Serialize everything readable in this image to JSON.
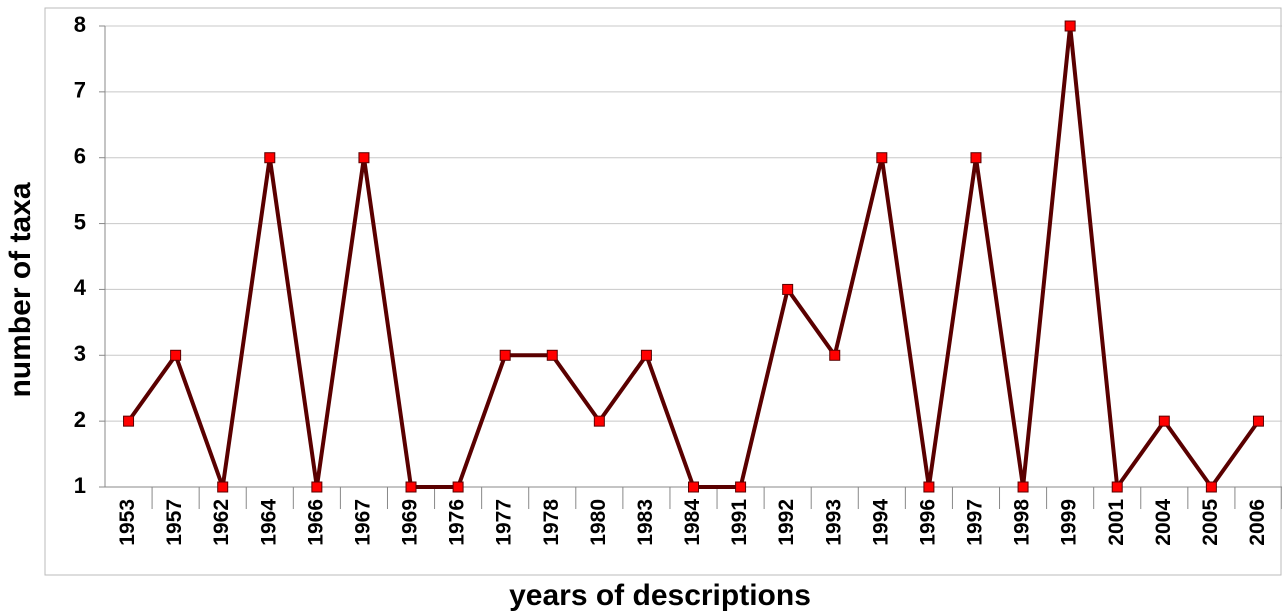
{
  "chart_data": {
    "type": "line",
    "x_label": "years of descriptions",
    "y_label": "number of taxa",
    "categories": [
      "1953",
      "1957",
      "1962",
      "1964",
      "1966",
      "1967",
      "1969",
      "1976",
      "1977",
      "1978",
      "1980",
      "1983",
      "1984",
      "1991",
      "1992",
      "1993",
      "1994",
      "1996",
      "1997",
      "1998",
      "1999",
      "2001",
      "2004",
      "2005",
      "2006"
    ],
    "values": [
      2,
      3,
      1,
      6,
      1,
      6,
      1,
      1,
      3,
      3,
      2,
      3,
      1,
      1,
      4,
      3,
      6,
      1,
      6,
      1,
      8,
      1,
      2,
      1,
      2
    ],
    "color": "#5a0000",
    "marker_color": "#ff0000",
    "ylim": [
      1,
      8
    ],
    "yticks": [
      1,
      2,
      3,
      4,
      5,
      6,
      7,
      8
    ],
    "grid": true
  }
}
